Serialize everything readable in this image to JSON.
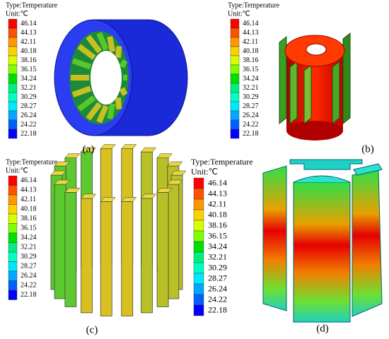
{
  "panels": [
    {
      "caption": "(a)",
      "legend": {
        "type": "Type:Temperature",
        "unit": "Unit:℃",
        "levels": [
          "46.14",
          "44.13",
          "42.11",
          "40.18",
          "38.16",
          "36.15",
          "34.24",
          "32.21",
          "30.29",
          "28.27",
          "26.24",
          "24.22",
          "22.18"
        ]
      }
    },
    {
      "caption": "(b)",
      "legend": {
        "type": "Type:Temperature",
        "unit": "Unit:℃",
        "levels": [
          "46.14",
          "44.13",
          "42.11",
          "40.18",
          "38.16",
          "36.15",
          "34.24",
          "32.21",
          "30.29",
          "28.27",
          "26.24",
          "24.22",
          "22.18"
        ]
      }
    },
    {
      "caption": "(c)",
      "legend": {
        "type": "Type:Temperature",
        "unit": "Unit:℃",
        "levels": [
          "46.14",
          "44.13",
          "42.11",
          "40.18",
          "38.16",
          "36.15",
          "34.24",
          "32.21",
          "30.29",
          "28.27",
          "26.24",
          "24.22",
          "22.18"
        ]
      }
    },
    {
      "caption": "(d)",
      "legend": {
        "type": "Type:Temperature",
        "unit": "Unit:℃",
        "levels": [
          "46.14",
          "44.13",
          "42.11",
          "40.18",
          "38.16",
          "36.15",
          "34.24",
          "32.21",
          "30.29",
          "28.27",
          "26.24",
          "24.22",
          "22.18"
        ]
      }
    }
  ]
}
